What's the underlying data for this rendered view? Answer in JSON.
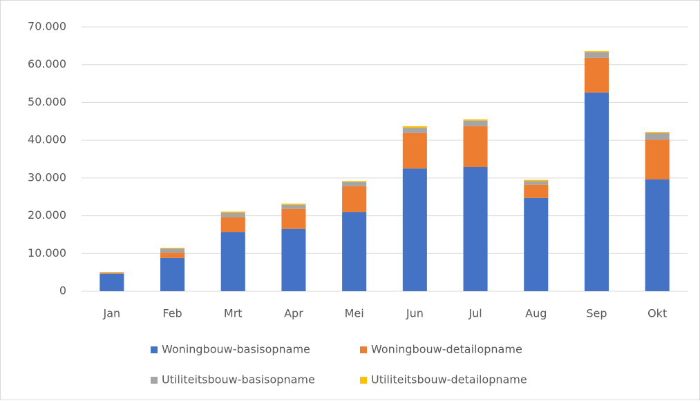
{
  "chart_data": {
    "type": "stacked_bar",
    "categories": [
      "Jan",
      "Feb",
      "Mrt",
      "Apr",
      "Mei",
      "Jun",
      "Jul",
      "Aug",
      "Sep",
      "Okt"
    ],
    "series": [
      {
        "name": "Woningbouw-basisopname",
        "color": "#4472c4",
        "values": [
          4600,
          8800,
          15700,
          16500,
          21000,
          32500,
          32900,
          24700,
          52600,
          29600
        ]
      },
      {
        "name": "Woningbouw-detailopname",
        "color": "#ed7d31",
        "values": [
          200,
          1400,
          3900,
          5300,
          6800,
          9400,
          10800,
          3500,
          9200,
          10500
        ]
      },
      {
        "name": "Utiliteitsbouw-basisopname",
        "color": "#a5a5a5",
        "values": [
          200,
          1100,
          1200,
          1100,
          1100,
          1400,
          1500,
          1000,
          1500,
          1800
        ]
      },
      {
        "name": "Utiliteitsbouw-detailopname",
        "color": "#ffc000",
        "values": [
          100,
          200,
          300,
          300,
          300,
          400,
          300,
          300,
          300,
          300
        ]
      }
    ],
    "ylim": [
      0,
      70000
    ],
    "yticks": [
      0,
      {
        "value": 10000,
        "label": "10.000"
      },
      {
        "value": 20000,
        "label": "20.000"
      },
      {
        "value": 30000,
        "label": "30.000"
      },
      {
        "value": 40000,
        "label": "40.000"
      },
      {
        "value": 50000,
        "label": "50.000"
      },
      {
        "value": 60000,
        "label": "60.000"
      },
      {
        "value": 70000,
        "label": "70.000"
      }
    ],
    "grid": true,
    "legend": "bottom"
  }
}
